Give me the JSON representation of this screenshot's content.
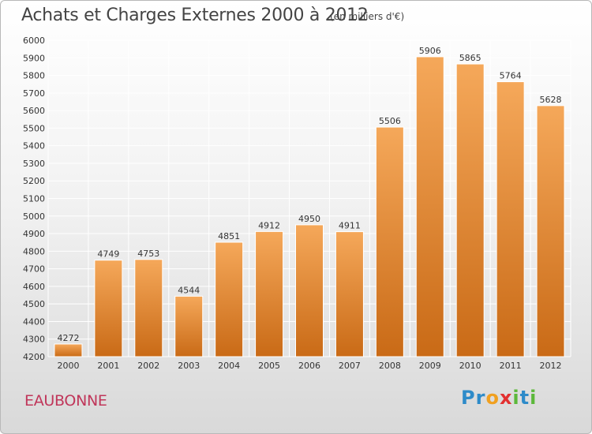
{
  "title": "Achats et Charges Externes 2000 à 2012",
  "subtitle": "(en milliers d'€)",
  "city": "EAUBONNE",
  "logo": {
    "text": "Proxiti",
    "letters": [
      "P",
      "r",
      "o",
      "x",
      "i",
      "t",
      "i"
    ],
    "colors": [
      "#2e8bc9",
      "#2e8bc9",
      "#f0a020",
      "#e23030",
      "#5cb83a",
      "#2e8bc9",
      "#5cb83a"
    ]
  },
  "colors": {
    "bar_top": "#f5a85a",
    "bar_bottom": "#c96a16",
    "grid": "#ffffff",
    "axis_text": "#333333"
  },
  "chart_data": {
    "type": "bar",
    "title": "Achats et Charges Externes 2000 à 2012",
    "xlabel": "",
    "ylabel": "",
    "categories": [
      "2000",
      "2001",
      "2002",
      "2003",
      "2004",
      "2005",
      "2006",
      "2007",
      "2008",
      "2009",
      "2010",
      "2011",
      "2012"
    ],
    "values": [
      4272,
      4749,
      4753,
      4544,
      4851,
      4912,
      4950,
      4911,
      5506,
      5906,
      5865,
      5764,
      5628
    ],
    "ylim": [
      4200,
      6000
    ],
    "yticks": [
      4200,
      4300,
      4400,
      4500,
      4600,
      4700,
      4800,
      4900,
      5000,
      5100,
      5200,
      5300,
      5400,
      5500,
      5600,
      5700,
      5800,
      5900,
      6000
    ],
    "grid": true
  }
}
